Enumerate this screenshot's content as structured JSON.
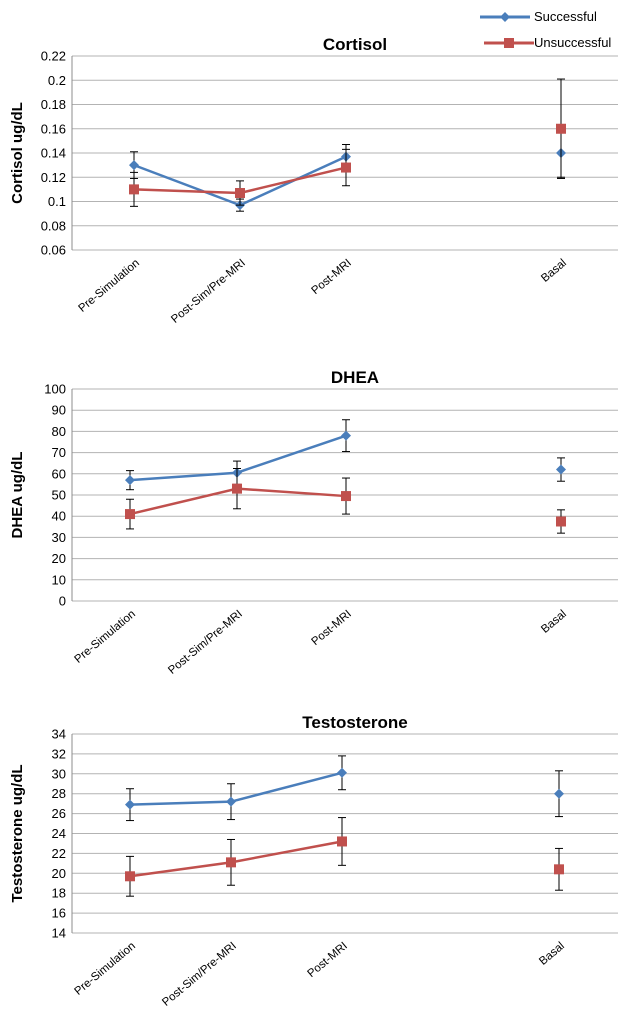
{
  "colors": {
    "successful": "#4a7ebb",
    "unsuccessful": "#c0504d",
    "grid": "#b3b3b3",
    "error": "#000000"
  },
  "legend": {
    "placement": "top-right",
    "items": [
      "Successful",
      "Unsuccessful"
    ]
  },
  "chart_data": [
    {
      "type": "line",
      "title": "Cortisol",
      "ylabel": "Cortisol ug/dL",
      "ylim": [
        0.06,
        0.22
      ],
      "yticks": [
        "0.06",
        "0.08",
        "0.1",
        "0.12",
        "0.14",
        "0.16",
        "0.18",
        "0.2",
        "0.22"
      ],
      "grid": true,
      "categories": [
        "Pre-Simulation",
        "Post-Sim/Pre-MRI",
        "Post-MRI",
        "Basal"
      ],
      "series": [
        {
          "name": "Successful",
          "values": [
            0.13,
            0.097,
            0.137,
            0.14
          ],
          "error": [
            0.011,
            0.005,
            0.01,
            0.02
          ],
          "connected": [
            true,
            true,
            true,
            false
          ]
        },
        {
          "name": "Unsuccessful",
          "values": [
            0.11,
            0.107,
            0.128,
            0.16
          ],
          "error": [
            0.014,
            0.01,
            0.015,
            0.041
          ],
          "connected": [
            true,
            true,
            true,
            false
          ]
        }
      ]
    },
    {
      "type": "line",
      "title": "DHEA",
      "ylabel": "DHEA ug/dL",
      "ylim": [
        0,
        100
      ],
      "yticks": [
        "0",
        "10",
        "20",
        "30",
        "40",
        "50",
        "60",
        "70",
        "80",
        "90",
        "100"
      ],
      "grid": true,
      "categories": [
        "Pre-Simulation",
        "Post-Sim/Pre-MRI",
        "Post-MRI",
        "Basal"
      ],
      "series": [
        {
          "name": "Successful",
          "values": [
            57,
            60.5,
            78,
            62
          ],
          "error": [
            4.5,
            5.5,
            7.5,
            5.5
          ],
          "connected": [
            true,
            true,
            true,
            false
          ]
        },
        {
          "name": "Unsuccessful",
          "values": [
            41,
            53,
            49.5,
            37.5
          ],
          "error": [
            7,
            9.5,
            8.5,
            5.5
          ],
          "connected": [
            true,
            true,
            true,
            false
          ]
        }
      ]
    },
    {
      "type": "line",
      "title": "Testosterone",
      "ylabel": "Testosterone ug/dL",
      "ylim": [
        14,
        34
      ],
      "yticks": [
        "14",
        "16",
        "18",
        "20",
        "22",
        "24",
        "26",
        "28",
        "30",
        "32",
        "34"
      ],
      "grid": true,
      "categories": [
        "Pre-Simulation",
        "Post-Sim/Pre-MRI",
        "Post-MRI",
        "Basal"
      ],
      "series": [
        {
          "name": "Successful",
          "values": [
            26.9,
            27.2,
            30.1,
            28.0
          ],
          "error": [
            1.6,
            1.8,
            1.7,
            2.3
          ],
          "connected": [
            true,
            true,
            true,
            false
          ]
        },
        {
          "name": "Unsuccessful",
          "values": [
            19.7,
            21.1,
            23.2,
            20.4
          ],
          "error": [
            2.0,
            2.3,
            2.4,
            2.1
          ],
          "connected": [
            true,
            true,
            true,
            false
          ]
        }
      ]
    }
  ]
}
